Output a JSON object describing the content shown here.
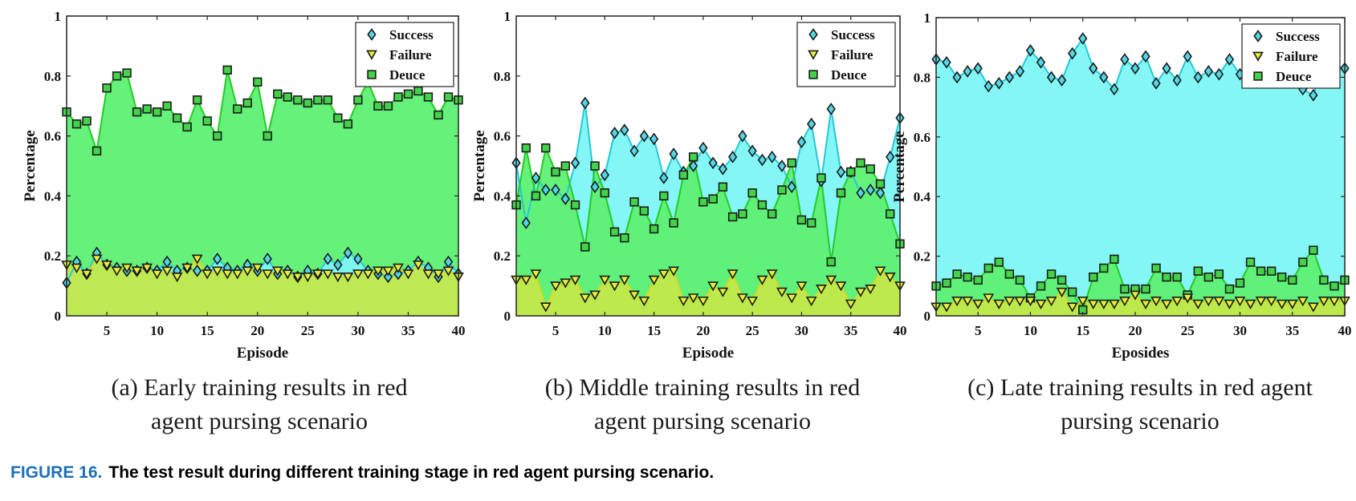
{
  "figure": {
    "label": "FIGURE 16.",
    "caption": "The test result during different training stage in red agent pursing scenario."
  },
  "colors": {
    "success_line": "#22c8d8",
    "success_fill": "#7ef6f6",
    "success_marker": "#55d6e4",
    "failure_line": "#d8d820",
    "failure_fill": "#c2e84a",
    "failure_marker": "#e8ee3c",
    "deuce_line": "#22cc22",
    "deuce_fill": "#5ef073",
    "deuce_marker": "#44d24a"
  },
  "chart_data": [
    {
      "type": "area",
      "caption_lines": [
        "(a) Early training results in red",
        "agent pursing scenario"
      ],
      "xlabel": "Episode",
      "ylabel": "Percentage",
      "xlim": [
        1,
        40
      ],
      "ylim": [
        0,
        1
      ],
      "xticks": [
        5,
        10,
        15,
        20,
        25,
        30,
        35,
        40
      ],
      "yticks": [
        0,
        0.2,
        0.4,
        0.6,
        0.8,
        1
      ],
      "ytick_labels": [
        "0",
        "0.2",
        "0.4",
        "0.6",
        "0.8",
        "1"
      ],
      "legend": [
        "Success",
        "Failure",
        "Deuce"
      ],
      "legend_position": "top-right",
      "x": [
        1,
        2,
        3,
        4,
        5,
        6,
        7,
        8,
        9,
        10,
        11,
        12,
        13,
        14,
        15,
        16,
        17,
        18,
        19,
        20,
        21,
        22,
        23,
        24,
        25,
        26,
        27,
        28,
        29,
        30,
        31,
        32,
        33,
        34,
        35,
        36,
        37,
        38,
        39,
        40
      ],
      "series": [
        {
          "name": "Success",
          "values": [
            0.11,
            0.18,
            0.14,
            0.21,
            0.17,
            0.16,
            0.15,
            0.15,
            0.16,
            0.15,
            0.18,
            0.15,
            0.16,
            0.15,
            0.15,
            0.19,
            0.16,
            0.15,
            0.17,
            0.15,
            0.19,
            0.14,
            0.15,
            0.13,
            0.15,
            0.14,
            0.19,
            0.17,
            0.21,
            0.19,
            0.15,
            0.14,
            0.13,
            0.14,
            0.15,
            0.18,
            0.16,
            0.13,
            0.18,
            0.14
          ]
        },
        {
          "name": "Failure",
          "values": [
            0.17,
            0.16,
            0.14,
            0.19,
            0.17,
            0.15,
            0.16,
            0.15,
            0.16,
            0.14,
            0.15,
            0.13,
            0.16,
            0.19,
            0.14,
            0.15,
            0.14,
            0.14,
            0.15,
            0.16,
            0.14,
            0.15,
            0.14,
            0.13,
            0.13,
            0.14,
            0.14,
            0.13,
            0.13,
            0.14,
            0.14,
            0.15,
            0.15,
            0.16,
            0.14,
            0.17,
            0.14,
            0.14,
            0.15,
            0.13
          ]
        },
        {
          "name": "Deuce",
          "values": [
            0.68,
            0.64,
            0.65,
            0.55,
            0.76,
            0.8,
            0.81,
            0.68,
            0.69,
            0.68,
            0.7,
            0.66,
            0.63,
            0.72,
            0.65,
            0.6,
            0.82,
            0.69,
            0.71,
            0.78,
            0.6,
            0.74,
            0.73,
            0.72,
            0.71,
            0.72,
            0.72,
            0.66,
            0.64,
            0.72,
            0.78,
            0.7,
            0.7,
            0.73,
            0.74,
            0.75,
            0.73,
            0.67,
            0.73,
            0.72
          ]
        }
      ]
    },
    {
      "type": "area",
      "caption_lines": [
        "(b) Middle training results in red",
        "agent pursing scenario"
      ],
      "xlabel": "Episode",
      "ylabel": "Percentage",
      "xlim": [
        1,
        40
      ],
      "ylim": [
        0,
        1
      ],
      "xticks": [
        5,
        10,
        15,
        20,
        25,
        30,
        35,
        40
      ],
      "yticks": [
        0,
        0.2,
        0.4,
        0.6,
        0.8,
        1
      ],
      "ytick_labels": [
        "0",
        "0.2",
        "0.4",
        "0.6",
        "0.8",
        "1"
      ],
      "legend": [
        "Success",
        "Failure",
        "Deuce"
      ],
      "legend_position": "top-right",
      "x": [
        1,
        2,
        3,
        4,
        5,
        6,
        7,
        8,
        9,
        10,
        11,
        12,
        13,
        14,
        15,
        16,
        17,
        18,
        19,
        20,
        21,
        22,
        23,
        24,
        25,
        26,
        27,
        28,
        29,
        30,
        31,
        32,
        33,
        34,
        35,
        36,
        37,
        38,
        39,
        40
      ],
      "series": [
        {
          "name": "Success",
          "values": [
            0.51,
            0.31,
            0.46,
            0.42,
            0.42,
            0.39,
            0.51,
            0.71,
            0.43,
            0.47,
            0.61,
            0.62,
            0.55,
            0.6,
            0.59,
            0.46,
            0.54,
            0.48,
            0.5,
            0.56,
            0.51,
            0.49,
            0.53,
            0.6,
            0.55,
            0.52,
            0.53,
            0.5,
            0.43,
            0.58,
            0.64,
            0.45,
            0.69,
            0.48,
            0.48,
            0.41,
            0.42,
            0.41,
            0.53,
            0.66
          ]
        },
        {
          "name": "Failure",
          "values": [
            0.12,
            0.12,
            0.14,
            0.03,
            0.1,
            0.11,
            0.12,
            0.06,
            0.07,
            0.12,
            0.1,
            0.12,
            0.07,
            0.05,
            0.12,
            0.14,
            0.15,
            0.05,
            0.06,
            0.05,
            0.1,
            0.08,
            0.14,
            0.06,
            0.05,
            0.12,
            0.14,
            0.08,
            0.06,
            0.1,
            0.05,
            0.09,
            0.12,
            0.1,
            0.04,
            0.08,
            0.09,
            0.15,
            0.13,
            0.1
          ]
        },
        {
          "name": "Deuce",
          "values": [
            0.37,
            0.56,
            0.4,
            0.56,
            0.48,
            0.5,
            0.37,
            0.23,
            0.5,
            0.41,
            0.28,
            0.26,
            0.38,
            0.35,
            0.29,
            0.4,
            0.31,
            0.47,
            0.53,
            0.38,
            0.39,
            0.43,
            0.33,
            0.34,
            0.41,
            0.37,
            0.34,
            0.42,
            0.51,
            0.32,
            0.31,
            0.46,
            0.18,
            0.41,
            0.48,
            0.51,
            0.49,
            0.44,
            0.34,
            0.24
          ]
        }
      ]
    },
    {
      "type": "area",
      "caption_lines": [
        "(c) Late training results in red agent",
        "pursing scenario"
      ],
      "xlabel": "Eposides",
      "ylabel": "Percentage",
      "xlim": [
        1,
        40
      ],
      "ylim": [
        0,
        1
      ],
      "xticks": [
        5,
        10,
        15,
        20,
        25,
        30,
        35,
        40
      ],
      "yticks": [
        0,
        0.2,
        0.4,
        0.6,
        0.8,
        1
      ],
      "ytick_labels": [
        "0",
        "0.2",
        "0.4",
        "0.6",
        "0.8",
        "1"
      ],
      "legend": [
        "Success",
        "Failure",
        "Deuce"
      ],
      "legend_position": "top-right",
      "x": [
        1,
        2,
        3,
        4,
        5,
        6,
        7,
        8,
        9,
        10,
        11,
        12,
        13,
        14,
        15,
        16,
        17,
        18,
        19,
        20,
        21,
        22,
        23,
        24,
        25,
        26,
        27,
        28,
        29,
        30,
        31,
        32,
        33,
        34,
        35,
        36,
        37,
        38,
        39,
        40
      ],
      "series": [
        {
          "name": "Success",
          "values": [
            0.86,
            0.85,
            0.8,
            0.82,
            0.83,
            0.77,
            0.78,
            0.8,
            0.82,
            0.89,
            0.85,
            0.8,
            0.79,
            0.88,
            0.93,
            0.83,
            0.8,
            0.76,
            0.86,
            0.83,
            0.87,
            0.78,
            0.83,
            0.79,
            0.87,
            0.8,
            0.82,
            0.81,
            0.86,
            0.81,
            0.84,
            0.82,
            0.81,
            0.8,
            0.84,
            0.76,
            0.74,
            0.85,
            0.84,
            0.83
          ]
        },
        {
          "name": "Failure",
          "values": [
            0.03,
            0.03,
            0.05,
            0.05,
            0.04,
            0.06,
            0.04,
            0.05,
            0.05,
            0.05,
            0.04,
            0.05,
            0.08,
            0.03,
            0.05,
            0.04,
            0.04,
            0.04,
            0.05,
            0.07,
            0.04,
            0.05,
            0.04,
            0.05,
            0.06,
            0.04,
            0.05,
            0.05,
            0.04,
            0.05,
            0.04,
            0.05,
            0.05,
            0.04,
            0.04,
            0.05,
            0.03,
            0.05,
            0.05,
            0.05
          ]
        },
        {
          "name": "Deuce",
          "values": [
            0.1,
            0.11,
            0.14,
            0.13,
            0.12,
            0.16,
            0.18,
            0.14,
            0.12,
            0.06,
            0.1,
            0.14,
            0.12,
            0.08,
            0.02,
            0.13,
            0.16,
            0.19,
            0.09,
            0.09,
            0.09,
            0.16,
            0.13,
            0.13,
            0.07,
            0.15,
            0.13,
            0.14,
            0.09,
            0.11,
            0.18,
            0.15,
            0.15,
            0.13,
            0.12,
            0.18,
            0.22,
            0.12,
            0.1,
            0.12
          ]
        }
      ]
    }
  ]
}
